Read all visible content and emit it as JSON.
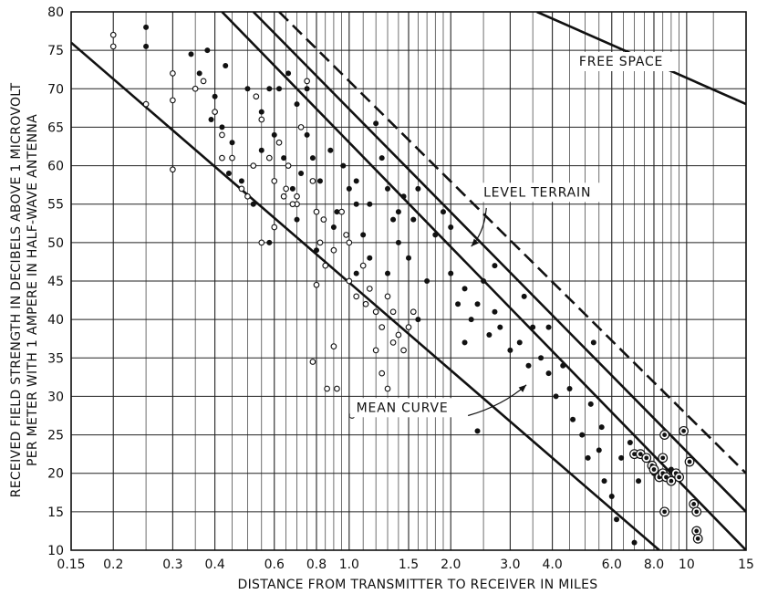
{
  "chart_data": {
    "type": "scatter",
    "title": "",
    "xlabel": "DISTANCE FROM TRANSMITTER TO RECEIVER IN MILES",
    "ylabel_line1": "RECEIVED FIELD STRENGTH IN DECIBELS ABOVE 1 MICROVOLT",
    "ylabel_line2": "PER METER WITH 1 AMPERE IN HALF-WAVE ANTENNA",
    "x_scale": "log",
    "xlim": [
      0.15,
      15
    ],
    "ylim": [
      10,
      80
    ],
    "grid": true,
    "x_ticks": [
      0.15,
      0.2,
      0.3,
      0.4,
      0.6,
      0.8,
      1.0,
      1.5,
      2.0,
      3.0,
      4.0,
      6.0,
      8.0,
      10,
      15
    ],
    "x_tick_labels": [
      "0.15",
      "0.2",
      "0.3",
      "0.4",
      "0.6",
      "0.8",
      "1.0",
      "1.5",
      "2.0",
      "3.0",
      "4.0",
      "6.0",
      "8.0",
      "10",
      "15"
    ],
    "x_minor_grid": [
      0.25,
      0.35,
      0.45,
      0.5,
      0.55,
      0.65,
      0.7,
      0.75,
      0.85,
      0.9,
      0.95,
      1.1,
      1.2,
      1.3,
      1.4,
      1.6,
      1.7,
      1.8,
      1.9,
      2.5,
      3.5,
      4.5,
      5.0,
      5.5,
      6.5,
      7.0,
      7.5,
      8.5,
      9.0,
      9.5,
      12.0
    ],
    "y_ticks": [
      10,
      15,
      20,
      25,
      30,
      35,
      40,
      45,
      50,
      55,
      60,
      65,
      70,
      75,
      80
    ],
    "annotations": [
      {
        "text": "FREE SPACE",
        "x": 4.8,
        "y": 73
      },
      {
        "text": "LEVEL TERRAIN",
        "x": 2.5,
        "y": 56
      },
      {
        "text": "MEAN CURVE",
        "x": 1.05,
        "y": 28
      }
    ],
    "lines": [
      {
        "id": "free-space",
        "style": "solid",
        "points": [
          [
            3.6,
            80
          ],
          [
            15,
            68
          ]
        ]
      },
      {
        "id": "level-terrain",
        "style": "dashed",
        "points": [
          [
            0.62,
            80
          ],
          [
            15,
            20
          ]
        ]
      },
      {
        "id": "upper-bound-outer",
        "style": "solid",
        "points": [
          [
            0.52,
            80
          ],
          [
            15,
            15
          ]
        ]
      },
      {
        "id": "upper-bound-inner",
        "style": "solid",
        "points": [
          [
            0.42,
            80
          ],
          [
            15,
            10
          ]
        ]
      },
      {
        "id": "mean-curve",
        "style": "solid",
        "points": [
          [
            0.15,
            76
          ],
          [
            8.3,
            10
          ]
        ]
      }
    ],
    "series": [
      {
        "name": "",
        "marker": "filled",
        "points": [
          [
            0.25,
            78
          ],
          [
            0.25,
            75.5
          ],
          [
            0.34,
            74.5
          ],
          [
            0.36,
            72
          ],
          [
            0.38,
            75
          ],
          [
            0.4,
            69
          ],
          [
            0.43,
            73
          ],
          [
            0.39,
            66
          ],
          [
            0.42,
            65
          ],
          [
            0.45,
            63
          ],
          [
            0.5,
            70
          ],
          [
            0.55,
            67
          ],
          [
            0.58,
            70
          ],
          [
            0.62,
            70
          ],
          [
            0.66,
            72
          ],
          [
            0.7,
            68
          ],
          [
            0.75,
            70
          ],
          [
            0.44,
            59
          ],
          [
            0.48,
            58
          ],
          [
            0.52,
            55
          ],
          [
            0.55,
            62
          ],
          [
            0.6,
            64
          ],
          [
            0.64,
            61
          ],
          [
            0.68,
            57
          ],
          [
            0.72,
            59
          ],
          [
            0.75,
            64
          ],
          [
            0.78,
            61
          ],
          [
            0.82,
            58
          ],
          [
            0.88,
            62
          ],
          [
            0.92,
            54
          ],
          [
            0.96,
            60
          ],
          [
            1.0,
            57
          ],
          [
            1.05,
            55
          ],
          [
            1.1,
            51
          ],
          [
            1.2,
            65.5
          ],
          [
            1.25,
            61
          ],
          [
            1.3,
            57
          ],
          [
            1.35,
            53
          ],
          [
            1.4,
            50
          ],
          [
            1.45,
            56
          ],
          [
            1.5,
            48
          ],
          [
            1.55,
            53
          ],
          [
            1.6,
            57
          ],
          [
            1.7,
            45
          ],
          [
            1.8,
            51
          ],
          [
            1.9,
            54
          ],
          [
            2.0,
            46
          ],
          [
            2.1,
            42
          ],
          [
            2.2,
            44
          ],
          [
            2.3,
            40
          ],
          [
            2.4,
            42
          ],
          [
            2.5,
            45
          ],
          [
            2.6,
            38
          ],
          [
            2.7,
            41
          ],
          [
            2.8,
            39
          ],
          [
            3.0,
            36
          ],
          [
            3.2,
            37
          ],
          [
            3.4,
            34
          ],
          [
            3.5,
            39
          ],
          [
            3.7,
            35
          ],
          [
            3.9,
            33
          ],
          [
            4.1,
            30
          ],
          [
            4.3,
            34
          ],
          [
            4.6,
            27
          ],
          [
            4.9,
            25
          ],
          [
            5.1,
            22
          ],
          [
            5.3,
            37
          ],
          [
            5.5,
            23
          ],
          [
            5.7,
            19
          ],
          [
            6.0,
            17
          ],
          [
            6.4,
            22
          ],
          [
            6.8,
            24
          ],
          [
            7.2,
            19
          ],
          [
            7.6,
            22
          ],
          [
            8.0,
            20
          ],
          [
            8.5,
            20
          ],
          [
            9.0,
            20.5
          ],
          [
            9.5,
            19.5
          ],
          [
            7.0,
            11
          ],
          [
            6.2,
            14
          ],
          [
            0.58,
            50
          ],
          [
            0.7,
            53
          ],
          [
            0.8,
            49
          ],
          [
            0.9,
            52
          ],
          [
            1.05,
            46
          ],
          [
            1.15,
            48
          ],
          [
            1.3,
            46
          ],
          [
            1.6,
            40
          ],
          [
            2.2,
            37
          ],
          [
            2.4,
            25.5
          ],
          [
            1.05,
            58
          ],
          [
            1.15,
            55
          ],
          [
            1.4,
            54
          ],
          [
            2.0,
            52
          ],
          [
            2.7,
            47
          ],
          [
            3.3,
            43
          ],
          [
            3.9,
            39
          ],
          [
            4.5,
            31
          ],
          [
            5.2,
            29
          ],
          [
            5.6,
            26
          ]
        ]
      },
      {
        "name": "",
        "marker": "open",
        "points": [
          [
            0.2,
            77
          ],
          [
            0.2,
            75.5
          ],
          [
            0.25,
            68
          ],
          [
            0.3,
            72
          ],
          [
            0.3,
            68.5
          ],
          [
            0.3,
            59.5
          ],
          [
            0.35,
            70
          ],
          [
            0.37,
            71
          ],
          [
            0.4,
            67
          ],
          [
            0.42,
            64
          ],
          [
            0.42,
            61
          ],
          [
            0.45,
            61
          ],
          [
            0.48,
            57
          ],
          [
            0.5,
            56
          ],
          [
            0.53,
            69
          ],
          [
            0.55,
            66
          ],
          [
            0.58,
            61
          ],
          [
            0.6,
            58
          ],
          [
            0.62,
            63
          ],
          [
            0.64,
            56
          ],
          [
            0.66,
            60
          ],
          [
            0.7,
            56
          ],
          [
            0.72,
            65
          ],
          [
            0.75,
            71
          ],
          [
            0.78,
            58
          ],
          [
            0.8,
            54
          ],
          [
            0.82,
            50
          ],
          [
            0.85,
            47
          ],
          [
            0.9,
            49
          ],
          [
            0.95,
            54
          ],
          [
            1.0,
            50
          ],
          [
            1.0,
            45
          ],
          [
            1.05,
            43
          ],
          [
            1.1,
            47
          ],
          [
            1.15,
            44
          ],
          [
            1.2,
            41
          ],
          [
            1.25,
            39
          ],
          [
            1.3,
            43
          ],
          [
            1.35,
            41
          ],
          [
            1.4,
            38
          ],
          [
            1.45,
            36
          ],
          [
            1.5,
            39
          ],
          [
            1.55,
            41
          ],
          [
            0.55,
            50
          ],
          [
            0.65,
            57
          ],
          [
            0.7,
            55
          ],
          [
            0.8,
            44.5
          ],
          [
            0.78,
            34.5
          ],
          [
            0.86,
            31
          ],
          [
            0.92,
            31
          ],
          [
            0.9,
            36.5
          ],
          [
            1.02,
            27.5
          ],
          [
            1.3,
            31
          ],
          [
            1.25,
            33
          ],
          [
            1.35,
            37
          ],
          [
            0.52,
            60
          ],
          [
            0.6,
            52
          ],
          [
            0.68,
            55
          ],
          [
            0.84,
            53
          ],
          [
            0.98,
            51
          ],
          [
            1.12,
            42
          ],
          [
            1.2,
            36
          ]
        ]
      },
      {
        "name": "",
        "marker": "ringed",
        "points": [
          [
            7.0,
            22.5
          ],
          [
            7.3,
            22.5
          ],
          [
            7.6,
            22
          ],
          [
            7.9,
            21
          ],
          [
            8.0,
            20.5
          ],
          [
            8.3,
            19.5
          ],
          [
            8.5,
            20
          ],
          [
            8.7,
            19.5
          ],
          [
            9.0,
            19
          ],
          [
            9.3,
            20
          ],
          [
            9.5,
            19.5
          ],
          [
            8.5,
            22
          ],
          [
            8.6,
            25
          ],
          [
            9.8,
            25.5
          ],
          [
            10.5,
            16
          ],
          [
            10.7,
            15
          ],
          [
            10.7,
            12.5
          ],
          [
            10.8,
            11.5
          ],
          [
            8.6,
            15
          ],
          [
            10.2,
            21.5
          ]
        ]
      }
    ]
  }
}
